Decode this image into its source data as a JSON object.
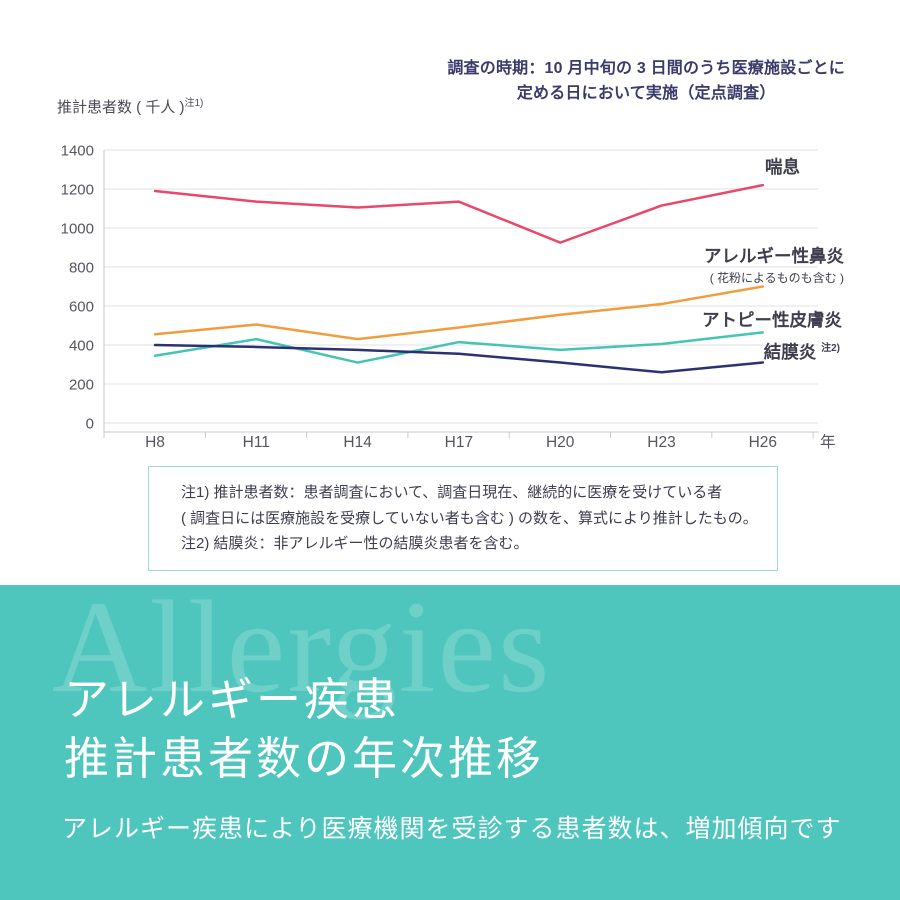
{
  "survey_note": {
    "line1": "調査の時期：10 月中旬の 3 日間のうち医療施設ごとに",
    "line2": "定める日において実施（定点調査）"
  },
  "y_axis": {
    "title": "推計患者数 ( 千人 )",
    "title_note": "注1)"
  },
  "chart_data": {
    "type": "line",
    "categories": [
      "H8",
      "H11",
      "H14",
      "H17",
      "H20",
      "H23",
      "H26"
    ],
    "x_axis_unit": "年",
    "ylim": [
      0,
      1400
    ],
    "ytick_step": 200,
    "yticks": [
      0,
      200,
      400,
      600,
      800,
      1000,
      1200,
      1400
    ],
    "grid": true,
    "legend_position": "right of line ends",
    "series": [
      {
        "name": "喘息",
        "color": "#e9476b",
        "values": [
          1190,
          1135,
          1105,
          1135,
          925,
          1115,
          1220
        ]
      },
      {
        "name": "アレルギー性鼻炎",
        "sublabel": "( 花粉によるものも含む )",
        "color": "#f09d3f",
        "values": [
          455,
          505,
          430,
          490,
          555,
          610,
          700
        ]
      },
      {
        "name": "アトピー性皮膚炎",
        "color": "#45c4b3",
        "values": [
          345,
          430,
          310,
          415,
          375,
          405,
          465
        ]
      },
      {
        "name": "結膜炎",
        "label_note": "注2)",
        "color": "#2b3173",
        "values": [
          400,
          390,
          375,
          355,
          310,
          260,
          310
        ]
      }
    ]
  },
  "notes_box": {
    "lines": [
      "注1) 推計患者数：患者調査において、調査日現在、継続的に医療を受けている者",
      "( 調査日には医療施設を受療していない者も含む ) の数を、算式により推計したもの。",
      "注2) 結膜炎：非アレルギー性の結膜炎患者を含む。"
    ]
  },
  "footer": {
    "watermark": "Allergies",
    "title_line1": "アレルギー疾患",
    "title_line2": "推計患者数の年次推移",
    "subtitle": "アレルギー疾患により医療機関を受診する患者数は、増加傾向です",
    "background_color": "#4fc6bd"
  },
  "colors": {
    "asthma_line": "#e9476b",
    "rhinitis_line": "#f09d3f",
    "atopic_line": "#45c4b3",
    "conjunctivitis_line": "#2b3173",
    "gridline": "#e0e0e4",
    "axis": "#c9c9cf",
    "tick_label": "#55555f",
    "note_text": "#3a3a6b",
    "footer_background": "#4fc6bd"
  }
}
